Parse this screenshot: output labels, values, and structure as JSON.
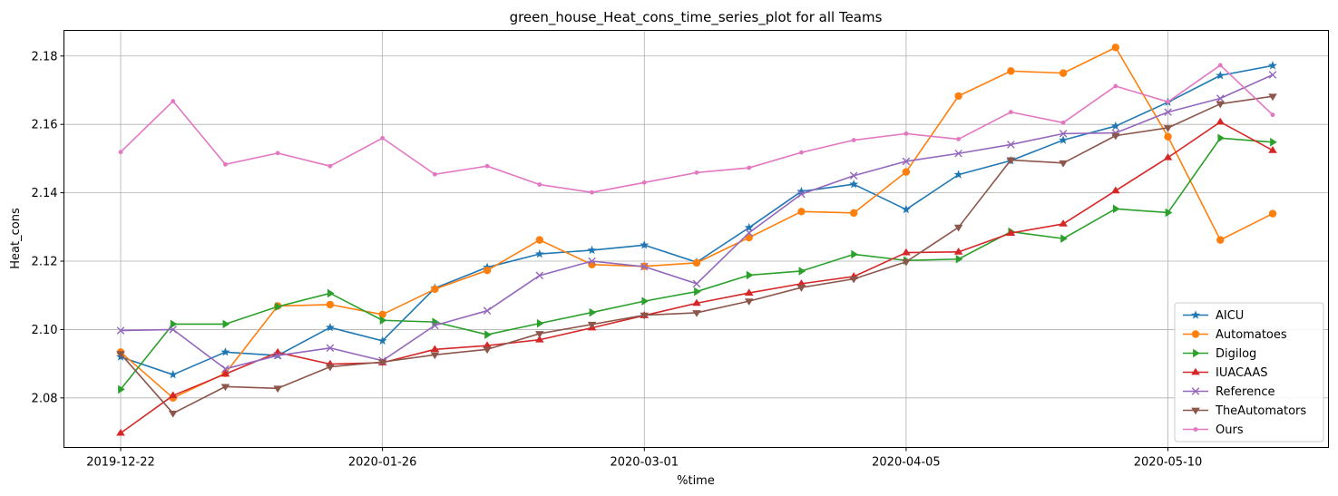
{
  "chart_data": {
    "type": "line",
    "title": "green_house_Heat_cons_time_series_plot for all Teams",
    "xlabel": "%time",
    "ylabel": "Heat_cons",
    "x": [
      "2019-12-22",
      "2019-12-29",
      "2020-01-05",
      "2020-01-12",
      "2020-01-19",
      "2020-01-26",
      "2020-02-02",
      "2020-02-09",
      "2020-02-16",
      "2020-02-23",
      "2020-03-01",
      "2020-03-08",
      "2020-03-15",
      "2020-03-22",
      "2020-03-29",
      "2020-04-05",
      "2020-04-12",
      "2020-04-19",
      "2020-04-26",
      "2020-05-03",
      "2020-05-10",
      "2020-05-17",
      "2020-05-24"
    ],
    "x_ticks": [
      "2019-12-22",
      "2020-01-26",
      "2020-03-01",
      "2020-04-05",
      "2020-05-10"
    ],
    "ylim": [
      2.0655,
      2.1875
    ],
    "y_ticks": [
      "2.08",
      "2.10",
      "2.12",
      "2.14",
      "2.16",
      "2.18"
    ],
    "y_tick_values": [
      2.08,
      2.1,
      2.12,
      2.14,
      2.16,
      2.18
    ],
    "grid": true,
    "legend_position": "bottom-right",
    "series": [
      {
        "name": "AICU",
        "color": "#1f77b4",
        "marker": "star",
        "values": [
          2.092,
          2.0868,
          2.0934,
          2.0924,
          2.1006,
          2.0967,
          2.1121,
          2.1182,
          2.1221,
          2.1232,
          2.1247,
          2.1197,
          2.1298,
          2.1404,
          2.1425,
          2.1351,
          2.1453,
          2.1494,
          2.1554,
          2.1595,
          2.1665,
          2.1743,
          2.1772
        ]
      },
      {
        "name": "Automatoes",
        "color": "#ff7f0e",
        "marker": "circle",
        "values": [
          2.0934,
          2.08,
          2.0872,
          2.1069,
          2.1073,
          2.1044,
          2.1118,
          2.1173,
          2.1262,
          2.119,
          2.1185,
          2.1195,
          2.1269,
          2.1345,
          2.1341,
          2.1461,
          2.1683,
          2.1756,
          2.175,
          2.1825,
          2.1564,
          2.1262,
          2.1339
        ]
      },
      {
        "name": "Digilog",
        "color": "#2ca02c",
        "marker": "triangle-right",
        "values": [
          2.0825,
          2.1016,
          2.1016,
          2.1067,
          2.1106,
          2.1027,
          2.1022,
          2.0985,
          2.1018,
          2.105,
          2.1083,
          2.1111,
          2.1159,
          2.1171,
          2.122,
          2.1202,
          2.1206,
          2.1286,
          2.1266,
          2.1353,
          2.1342,
          2.156,
          2.1548
        ]
      },
      {
        "name": "IUACAAS",
        "color": "#d62728",
        "marker": "triangle-up",
        "values": [
          2.0697,
          2.0807,
          2.087,
          2.0933,
          2.0899,
          2.0903,
          2.0942,
          2.0953,
          2.097,
          2.1005,
          2.1041,
          2.1077,
          2.1107,
          2.1134,
          2.1155,
          2.1225,
          2.1227,
          2.1282,
          2.1309,
          2.1406,
          2.1503,
          2.1607,
          2.1524
        ]
      },
      {
        "name": "Reference",
        "color": "#9467bd",
        "marker": "x",
        "values": [
          2.0997,
          2.1,
          2.0885,
          2.0924,
          2.0946,
          2.0909,
          2.1012,
          2.1055,
          2.1158,
          2.12,
          2.1184,
          2.1134,
          2.1283,
          2.1396,
          2.145,
          2.1492,
          2.1515,
          2.1541,
          2.1573,
          2.1575,
          2.1636,
          2.1676,
          2.1745
        ]
      },
      {
        "name": "TheAutomators",
        "color": "#8c564b",
        "marker": "triangle-down",
        "values": [
          2.0929,
          2.0755,
          2.0833,
          2.0828,
          2.0891,
          2.0905,
          2.0926,
          2.0942,
          2.0988,
          2.1015,
          2.1042,
          2.1049,
          2.1083,
          2.1123,
          2.1148,
          2.1198,
          2.1299,
          2.1496,
          2.1487,
          2.1567,
          2.159,
          2.166,
          2.1682
        ]
      },
      {
        "name": "Ours",
        "color": "#e377c2",
        "marker": "point",
        "values": [
          2.1519,
          2.1668,
          2.1483,
          2.1516,
          2.1478,
          2.156,
          2.1454,
          2.1478,
          2.1424,
          2.1401,
          2.143,
          2.1459,
          2.1473,
          2.1518,
          2.1554,
          2.1573,
          2.1557,
          2.1636,
          2.1605,
          2.1712,
          2.1666,
          2.1773,
          2.1628
        ]
      }
    ]
  }
}
